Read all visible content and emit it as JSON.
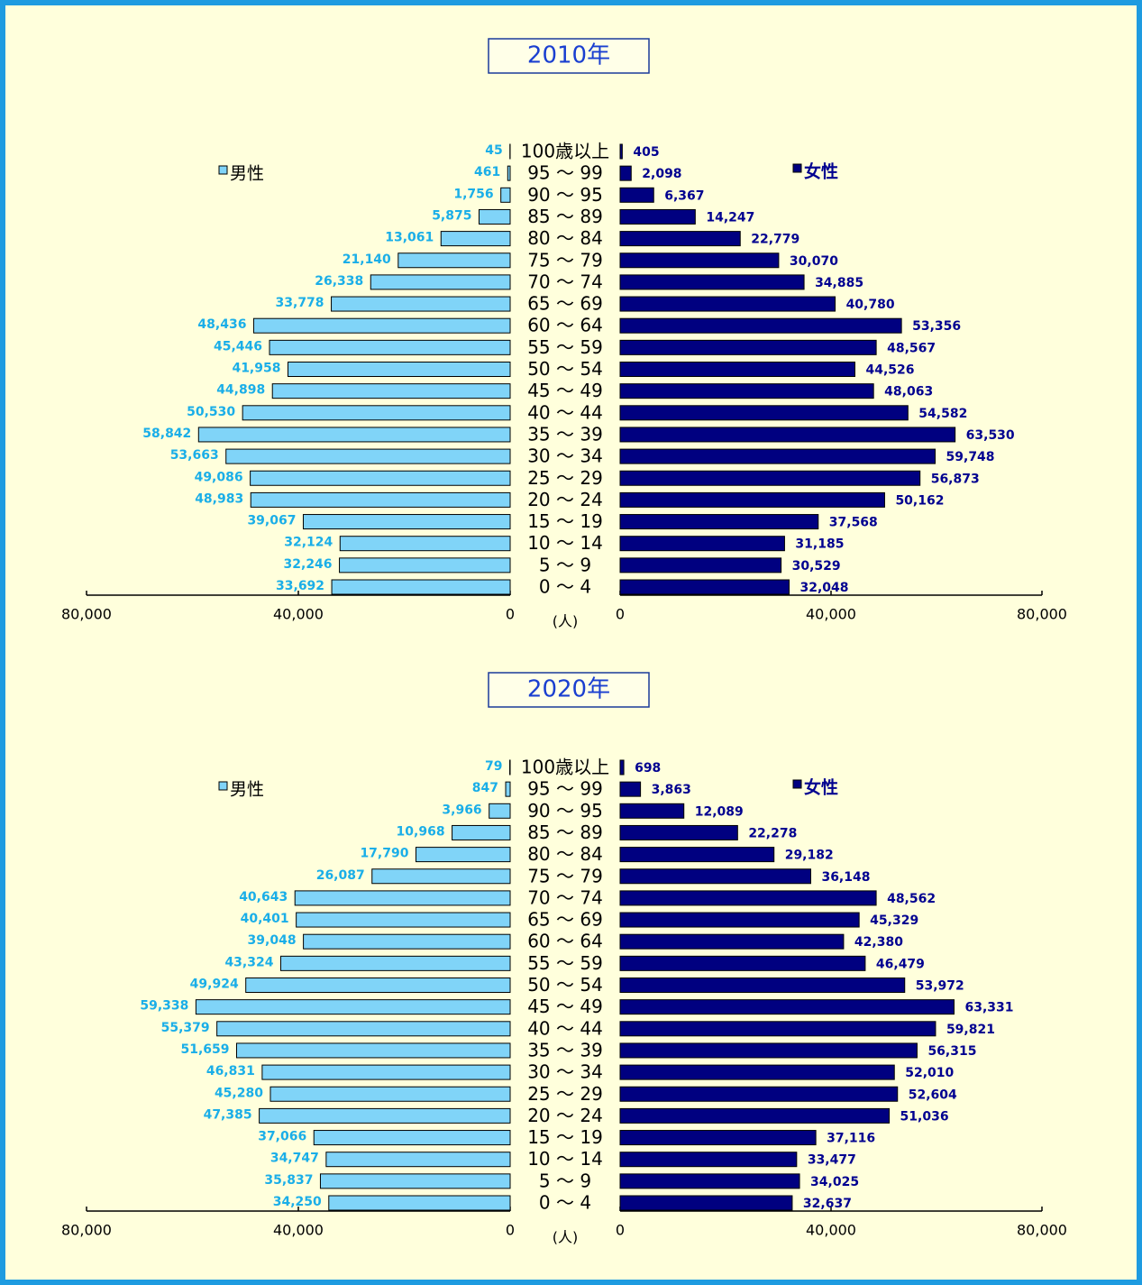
{
  "chart_data": [
    {
      "type": "pyramid",
      "title": "2010年",
      "unit": "(人)",
      "categories": [
        "100歳以上",
        "95 ～ 99",
        "90 ～ 95",
        "85 ～ 89",
        "80 ～ 84",
        "75 ～ 79",
        "70 ～ 74",
        "65 ～ 69",
        "60 ～ 64",
        "55 ～ 59",
        "50 ～ 54",
        "45 ～ 49",
        "40 ～ 44",
        "35 ～ 39",
        "30 ～ 34",
        "25 ～ 29",
        "20 ～ 24",
        "15 ～ 19",
        "10 ～ 14",
        "5 ～ 9",
        "0 ～ 4"
      ],
      "series": [
        {
          "name": "男性",
          "color": "#80d4f8",
          "label_color": "#1aaee8",
          "side": "left",
          "values": [
            45,
            461,
            1756,
            5875,
            13061,
            21140,
            26338,
            33778,
            48436,
            45446,
            41958,
            44898,
            50530,
            58842,
            53663,
            49086,
            48983,
            39067,
            32124,
            32246,
            33692
          ],
          "value_labels": [
            "45",
            "461",
            "1,756",
            "5,875",
            "13,061",
            "21,140",
            "26,338",
            "33,778",
            "48,436",
            "45,446",
            "41,958",
            "44,898",
            "50,530",
            "58,842",
            "53,663",
            "49,086",
            "48,983",
            "39,067",
            "32,124",
            "32,246",
            "33,692"
          ]
        },
        {
          "name": "女性",
          "color": "#000080",
          "label_color": "#000090",
          "side": "right",
          "values": [
            405,
            2098,
            6367,
            14247,
            22779,
            30070,
            34885,
            40780,
            53356,
            48567,
            44526,
            48063,
            54582,
            63530,
            59748,
            56873,
            50162,
            37568,
            31185,
            30529,
            32048
          ],
          "value_labels": [
            "405",
            "2,098",
            "6,367",
            "14,247",
            "22,779",
            "30,070",
            "34,885",
            "40,780",
            "53,356",
            "48,567",
            "44,526",
            "48,063",
            "54,582",
            "63,530",
            "59,748",
            "56,873",
            "50,162",
            "37,568",
            "31,185",
            "30,529",
            "32,048"
          ]
        }
      ],
      "xlim": [
        0,
        80000
      ],
      "xticks": [
        0,
        {
          "value": 40000,
          "label": "40,000"
        },
        {
          "value": 80000,
          "label": "80,000"
        }
      ],
      "grid": false
    },
    {
      "type": "pyramid",
      "title": "2020年",
      "unit": "(人)",
      "categories": [
        "100歳以上",
        "95 ～ 99",
        "90 ～ 95",
        "85 ～ 89",
        "80 ～ 84",
        "75 ～ 79",
        "70 ～ 74",
        "65 ～ 69",
        "60 ～ 64",
        "55 ～ 59",
        "50 ～ 54",
        "45 ～ 49",
        "40 ～ 44",
        "35 ～ 39",
        "30 ～ 34",
        "25 ～ 29",
        "20 ～ 24",
        "15 ～ 19",
        "10 ～ 14",
        "5 ～ 9",
        "0 ～ 4"
      ],
      "series": [
        {
          "name": "男性",
          "color": "#80d4f8",
          "label_color": "#1aaee8",
          "side": "left",
          "values": [
            79,
            847,
            3966,
            10968,
            17790,
            26087,
            40643,
            40401,
            39048,
            43324,
            49924,
            59338,
            55379,
            51659,
            46831,
            45280,
            47385,
            37066,
            34747,
            35837,
            34250
          ],
          "value_labels": [
            "79",
            "847",
            "3,966",
            "10,968",
            "17,790",
            "26,087",
            "40,643",
            "40,401",
            "39,048",
            "43,324",
            "49,924",
            "59,338",
            "55,379",
            "51,659",
            "46,831",
            "45,280",
            "47,385",
            "37,066",
            "34,747",
            "35,837",
            "34,250"
          ]
        },
        {
          "name": "女性",
          "color": "#000080",
          "label_color": "#000090",
          "side": "right",
          "values": [
            698,
            3863,
            12089,
            22278,
            29182,
            36148,
            48562,
            45329,
            42380,
            46479,
            53972,
            63331,
            59821,
            56315,
            52010,
            52604,
            51036,
            37116,
            33477,
            34025,
            32637
          ],
          "value_labels": [
            "698",
            "3,863",
            "12,089",
            "22,278",
            "29,182",
            "36,148",
            "48,562",
            "45,329",
            "42,380",
            "46,479",
            "53,972",
            "63,331",
            "59,821",
            "56,315",
            "52,010",
            "52,604",
            "51,036",
            "37,116",
            "33,477",
            "34,025",
            "32,637"
          ]
        }
      ],
      "xlim": [
        0,
        80000
      ],
      "xticks": [
        0,
        {
          "value": 40000,
          "label": "40,000"
        },
        {
          "value": 80000,
          "label": "80,000"
        }
      ],
      "grid": false
    }
  ]
}
